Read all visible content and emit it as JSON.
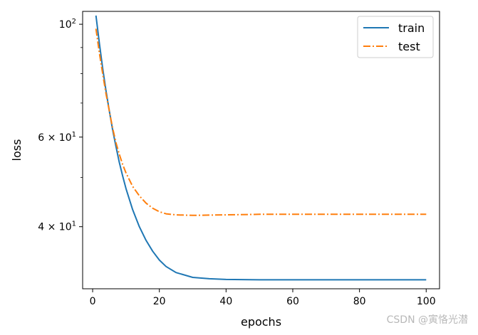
{
  "chart_data": {
    "type": "line",
    "xlabel": "epochs",
    "ylabel": "loss",
    "yscale": "log",
    "xlim": [
      -3,
      104
    ],
    "ylim": [
      30.2,
      106
    ],
    "xticks": [
      0,
      20,
      40,
      60,
      80,
      100
    ],
    "yticks_major": [
      {
        "value": 100,
        "label": "10",
        "sup": "2"
      },
      {
        "value": 60,
        "label": "6 × 10",
        "sup": "1"
      },
      {
        "value": 40,
        "label": "4 × 10",
        "sup": "1"
      }
    ],
    "yticks_minor": [
      50,
      70,
      80,
      90
    ],
    "legend": {
      "placement": "top-right",
      "entries": [
        "train",
        "test"
      ]
    },
    "grid": false,
    "series": [
      {
        "name": "train",
        "color": "#1f77b4",
        "linestyle": "solid",
        "x": [
          1,
          2,
          3,
          4,
          5,
          6,
          7,
          8,
          9,
          10,
          12,
          14,
          16,
          18,
          20,
          22,
          25,
          30,
          35,
          40,
          50,
          60,
          70,
          80,
          90,
          100
        ],
        "y": [
          104,
          92,
          82,
          74,
          67.5,
          62,
          57.5,
          53.5,
          50.3,
          47.5,
          43.2,
          40.0,
          37.6,
          35.8,
          34.4,
          33.4,
          32.5,
          31.8,
          31.6,
          31.5,
          31.45,
          31.45,
          31.45,
          31.45,
          31.45,
          31.45
        ]
      },
      {
        "name": "test",
        "color": "#ff7f0e",
        "linestyle": "dashdot",
        "x": [
          1,
          2,
          3,
          4,
          5,
          6,
          7,
          8,
          9,
          10,
          12,
          14,
          16,
          18,
          20,
          22,
          25,
          30,
          35,
          40,
          50,
          60,
          70,
          80,
          90,
          100
        ],
        "y": [
          98,
          88,
          80,
          73,
          67.5,
          62.5,
          58.5,
          55.5,
          53,
          51,
          48,
          46,
          44.5,
          43.5,
          42.8,
          42.4,
          42.2,
          42.1,
          42.15,
          42.2,
          42.3,
          42.3,
          42.3,
          42.3,
          42.3,
          42.3
        ]
      }
    ]
  },
  "watermark": "CSDN @寅恪光潜"
}
